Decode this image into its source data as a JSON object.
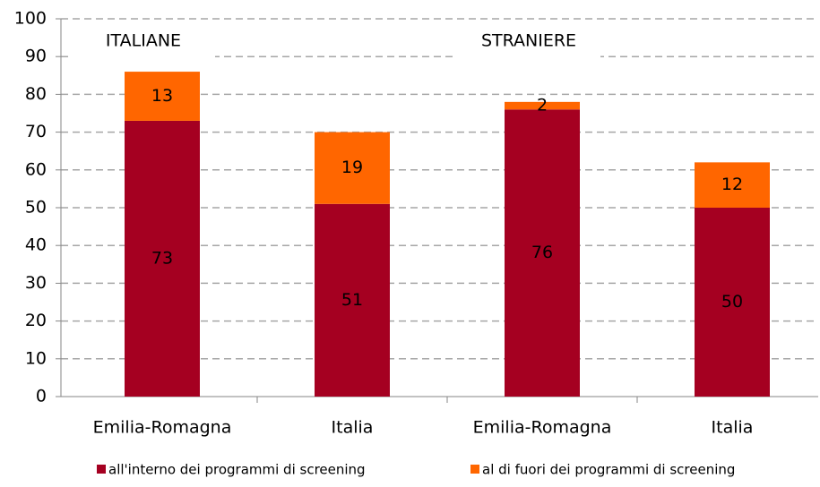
{
  "chart_data": {
    "type": "stacked_bar",
    "categories": [
      "Emilia-Romagna",
      "Italia",
      "Emilia-Romagna",
      "Italia"
    ],
    "series": [
      {
        "name": "all'interno dei programmi di screening",
        "color": "#a50021",
        "values": [
          73,
          51,
          76,
          50
        ]
      },
      {
        "name": "al di fuori dei programmi di screening",
        "color": "#ff6600",
        "values": [
          13,
          19,
          2,
          12
        ]
      }
    ],
    "annotations": [
      "ITALIANE",
      "STRANIERE"
    ],
    "ylim": [
      0,
      100
    ],
    "yticks": [
      0,
      10,
      20,
      30,
      40,
      50,
      60,
      70,
      80,
      90,
      100
    ],
    "grid": true,
    "legend": "bottom"
  }
}
